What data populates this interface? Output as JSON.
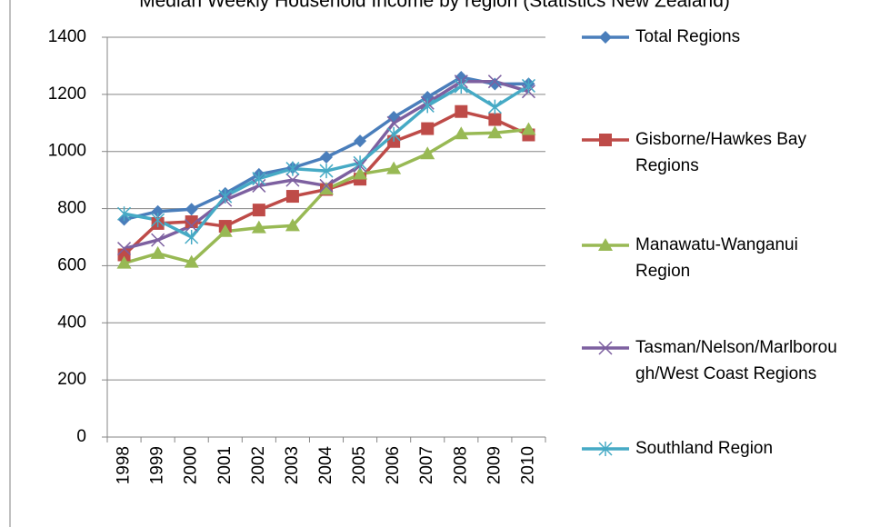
{
  "chart_data": {
    "type": "line",
    "title": "Median Weekly Household Income by region (Statistics New Zealand)",
    "categories": [
      "1998",
      "1999",
      "2000",
      "2001",
      "2002",
      "2003",
      "2004",
      "2005",
      "2006",
      "2007",
      "2008",
      "2009",
      "2010"
    ],
    "series": [
      {
        "name": "Total Regions",
        "color": "#4a7ebb",
        "marker": "diamond",
        "values": [
          762,
          790,
          798,
          853,
          920,
          943,
          980,
          1037,
          1120,
          1190,
          1260,
          1236,
          1237
        ]
      },
      {
        "name": "Gisborne/Hawkes Bay Regions",
        "color": "#be4b48",
        "marker": "square",
        "values": [
          638,
          748,
          754,
          738,
          795,
          843,
          867,
          903,
          1035,
          1080,
          1140,
          1112,
          1058
        ]
      },
      {
        "name": "Manawatu-Wanganui Region",
        "color": "#98b954",
        "marker": "triangle",
        "values": [
          609,
          643,
          612,
          720,
          733,
          740,
          868,
          921,
          940,
          992,
          1062,
          1065,
          1077
        ]
      },
      {
        "name": "Tasman/Nelson/Marlborough/West Coast Regions",
        "color": "#7d60a0",
        "marker": "x",
        "values": [
          660,
          690,
          740,
          830,
          880,
          900,
          880,
          950,
          1100,
          1170,
          1245,
          1245,
          1210
        ]
      },
      {
        "name": "Southland Region",
        "color": "#46aac5",
        "marker": "star",
        "values": [
          782,
          760,
          700,
          843,
          905,
          940,
          932,
          960,
          1060,
          1160,
          1228,
          1156,
          1230
        ]
      }
    ],
    "ylim": [
      0,
      1400
    ],
    "yticks": [
      0,
      200,
      400,
      600,
      800,
      1000,
      1200,
      1400
    ],
    "grid": true,
    "legend": "right"
  }
}
